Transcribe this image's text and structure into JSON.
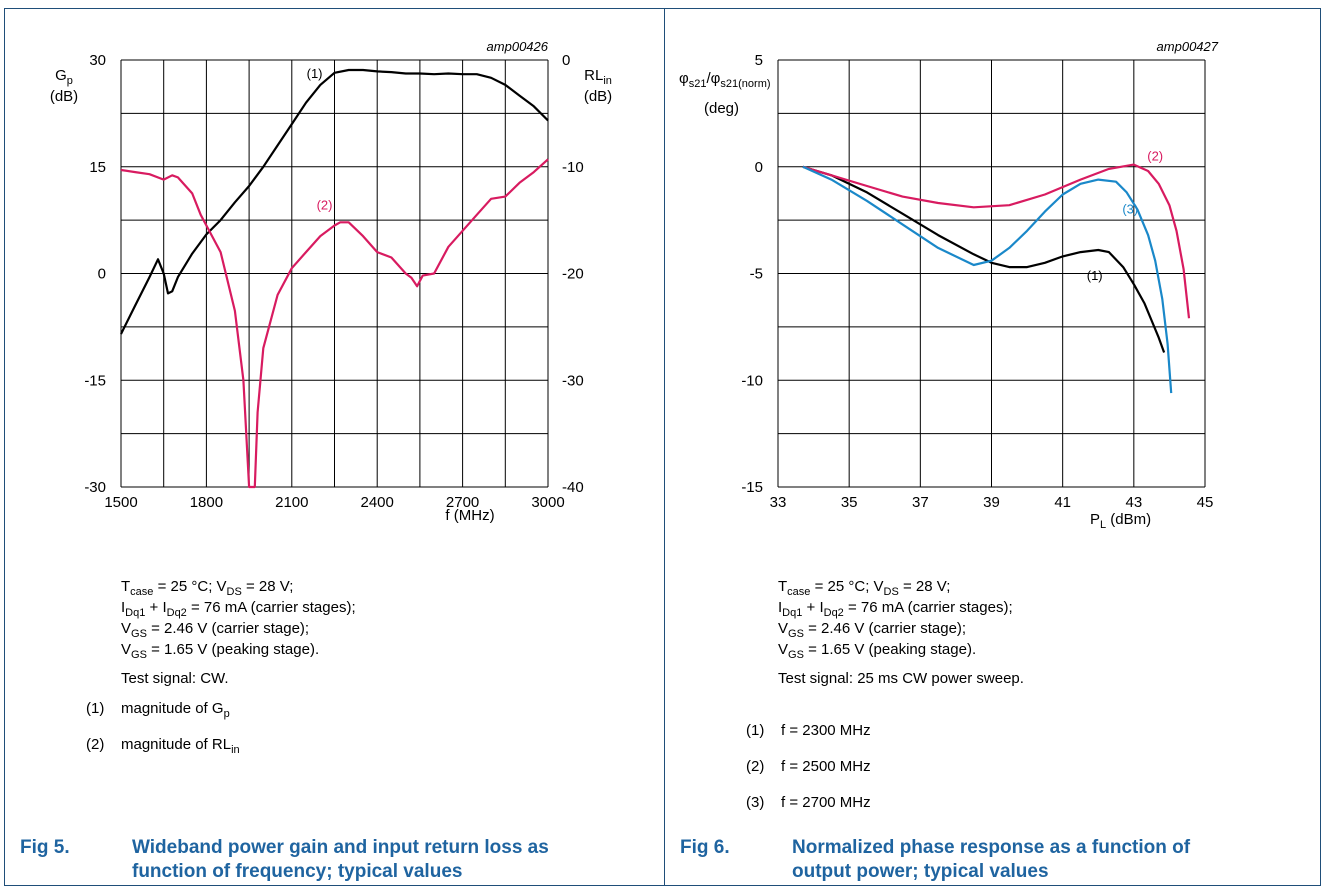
{
  "chart_data": [
    {
      "type": "line",
      "id": "amp00426",
      "xlabel": "f (MHz)",
      "ylabel_left": "Gp (dB)",
      "ylabel_right": "RLin (dB)",
      "xlim": [
        1500,
        3000
      ],
      "xticks": [
        "1500",
        "1800",
        "2100",
        "2400",
        "2700",
        "3000"
      ],
      "ylim_left": [
        -30,
        30
      ],
      "yticks_left": [
        "30",
        "15",
        "0",
        "-15",
        "-30"
      ],
      "ylim_right": [
        -40,
        0
      ],
      "yticks_right": [
        "0",
        "-10",
        "-20",
        "-30",
        "-40"
      ],
      "grid": true,
      "series": [
        {
          "name": "(1)",
          "axis": "left",
          "color": "#000000",
          "x": [
            1500,
            1550,
            1600,
            1630,
            1650,
            1665,
            1680,
            1700,
            1750,
            1800,
            1850,
            1900,
            1950,
            2000,
            2050,
            2100,
            2150,
            2200,
            2250,
            2300,
            2350,
            2400,
            2450,
            2500,
            2550,
            2600,
            2650,
            2700,
            2750,
            2800,
            2850,
            2900,
            2950,
            3000
          ],
          "y": [
            -8.5,
            -4.5,
            -0.5,
            2,
            0,
            -2.8,
            -2.5,
            -0.5,
            2.8,
            5.5,
            7.5,
            10,
            12.3,
            15,
            18,
            21,
            24,
            26.5,
            28.2,
            28.6,
            28.6,
            28.4,
            28.3,
            28.1,
            28.1,
            28.0,
            28.1,
            28.0,
            28.0,
            27.5,
            26.5,
            25,
            23.5,
            21.5
          ]
        },
        {
          "name": "(2)",
          "axis": "right",
          "color": "#d81b60",
          "x": [
            1500,
            1550,
            1600,
            1650,
            1680,
            1700,
            1750,
            1780,
            1800,
            1850,
            1900,
            1930,
            1950,
            1960,
            1970,
            1980,
            2000,
            2050,
            2100,
            2150,
            2200,
            2250,
            2270,
            2300,
            2350,
            2400,
            2450,
            2500,
            2520,
            2540,
            2560,
            2600,
            2650,
            2700,
            2750,
            2800,
            2850,
            2900,
            2950,
            3000
          ],
          "y": [
            -10.3,
            -10.5,
            -10.7,
            -11.2,
            -10.8,
            -11.0,
            -12.5,
            -14.5,
            -15.5,
            -18.0,
            -23.5,
            -30,
            -40,
            -40,
            -40,
            -33,
            -27,
            -22,
            -19.5,
            -18,
            -16.5,
            -15.5,
            -15.2,
            -15.2,
            -16.5,
            -18,
            -18.5,
            -20,
            -20.4,
            -21.2,
            -20.2,
            -20,
            -17.5,
            -16,
            -14.5,
            -13,
            -12.8,
            -11.5,
            -10.5,
            -9.3
          ]
        }
      ],
      "annotations": [
        {
          "label": "(1)",
          "series": 0,
          "x": 2180,
          "y": 27.5
        },
        {
          "label": "(2)",
          "series": 1,
          "x": 2215,
          "y": -14
        }
      ]
    },
    {
      "type": "line",
      "id": "amp00427",
      "xlabel": "PL (dBm)",
      "ylabel": "φs21/φs21(norm) (deg)",
      "xlim": [
        33,
        45
      ],
      "xticks": [
        "33",
        "35",
        "37",
        "39",
        "41",
        "43",
        "45"
      ],
      "ylim": [
        -15,
        5
      ],
      "yticks": [
        "5",
        "0",
        "-5",
        "-10",
        "-15"
      ],
      "grid": true,
      "series": [
        {
          "name": "(1)",
          "color": "#000000",
          "x": [
            33.7,
            34.5,
            35.5,
            36.5,
            37.5,
            38.5,
            39,
            39.5,
            40,
            40.5,
            41,
            41.5,
            42,
            42.3,
            42.7,
            43,
            43.3,
            43.5,
            43.7,
            43.85
          ],
          "y": [
            0,
            -0.4,
            -1.2,
            -2.2,
            -3.2,
            -4.1,
            -4.5,
            -4.7,
            -4.7,
            -4.5,
            -4.2,
            -4.0,
            -3.9,
            -4.0,
            -4.7,
            -5.5,
            -6.4,
            -7.2,
            -8.0,
            -8.7
          ]
        },
        {
          "name": "(2)",
          "color": "#d81b60",
          "x": [
            33.7,
            34.5,
            35.5,
            36.5,
            37.5,
            38.5,
            39.5,
            40.5,
            41.5,
            42.3,
            43,
            43.4,
            43.7,
            44,
            44.2,
            44.4,
            44.55
          ],
          "y": [
            0,
            -0.4,
            -0.9,
            -1.4,
            -1.7,
            -1.9,
            -1.8,
            -1.3,
            -0.6,
            -0.1,
            0.1,
            -0.2,
            -0.8,
            -1.8,
            -3.0,
            -4.8,
            -7.1
          ]
        },
        {
          "name": "(3)",
          "color": "#1a88c9",
          "x": [
            33.7,
            34.5,
            35.5,
            36.5,
            37.5,
            38.5,
            39,
            39.5,
            40,
            40.5,
            41,
            41.5,
            42,
            42.5,
            42.8,
            43.1,
            43.4,
            43.6,
            43.8,
            43.95,
            44.05
          ],
          "y": [
            0,
            -0.6,
            -1.6,
            -2.7,
            -3.8,
            -4.6,
            -4.4,
            -3.8,
            -3.0,
            -2.1,
            -1.3,
            -0.8,
            -0.6,
            -0.7,
            -1.2,
            -2.0,
            -3.2,
            -4.4,
            -6.2,
            -8.3,
            -10.6
          ]
        }
      ],
      "annotations": [
        {
          "label": "(1)",
          "series": 0,
          "x": 41.9,
          "y": -5.3
        },
        {
          "label": "(2)",
          "series": 1,
          "x": 43.6,
          "y": 0.3
        },
        {
          "label": "(3)",
          "series": 2,
          "x": 42.9,
          "y": -2.2
        }
      ]
    }
  ],
  "left_notes": {
    "line1_a": "T",
    "line1_a_sub": "case",
    "line1_b": " = 25 °C; V",
    "line1_b_sub": "DS",
    "line1_c": " = 28 V;",
    "line2_a": "I",
    "line2_a_sub": "Dq1",
    "line2_b": " + I",
    "line2_b_sub": "Dq2",
    "line2_c": " = 76 mA (carrier stages);",
    "line3_a": "V",
    "line3_a_sub": "GS",
    "line3_b": " = 2.46 V (carrier stage);",
    "line4_a": "V",
    "line4_a_sub": "GS",
    "line4_b": " = 1.65 V (peaking stage).",
    "test_signal": "Test signal: CW."
  },
  "left_legend": [
    {
      "num": "(1)",
      "text": "magnitude of G",
      "sub": "p"
    },
    {
      "num": "(2)",
      "text": "magnitude of RL",
      "sub": "in"
    }
  ],
  "left_caption": {
    "fig": "Fig 5.",
    "title": "Wideband power gain and input return loss as function of frequency; typical values"
  },
  "right_notes": {
    "line1_a": "T",
    "line1_a_sub": "case",
    "line1_b": " = 25 °C; V",
    "line1_b_sub": "DS",
    "line1_c": " = 28 V;",
    "line2_a": "I",
    "line2_a_sub": "Dq1",
    "line2_b": " + I",
    "line2_b_sub": "Dq2",
    "line2_c": " = 76 mA (carrier stages);",
    "line3_a": "V",
    "line3_a_sub": "GS",
    "line3_b": " = 2.46 V (carrier stage);",
    "line4_a": "V",
    "line4_a_sub": "GS",
    "line4_b": " = 1.65 V (peaking stage).",
    "test_signal": "Test signal: 25 ms CW power sweep."
  },
  "right_legend": [
    {
      "num": "(1)",
      "text": "f = 2300 MHz"
    },
    {
      "num": "(2)",
      "text": "f = 2500 MHz"
    },
    {
      "num": "(3)",
      "text": "f = 2700 MHz"
    }
  ],
  "right_caption": {
    "fig": "Fig 6.",
    "title": "Normalized phase response as a function of output power; typical values"
  }
}
